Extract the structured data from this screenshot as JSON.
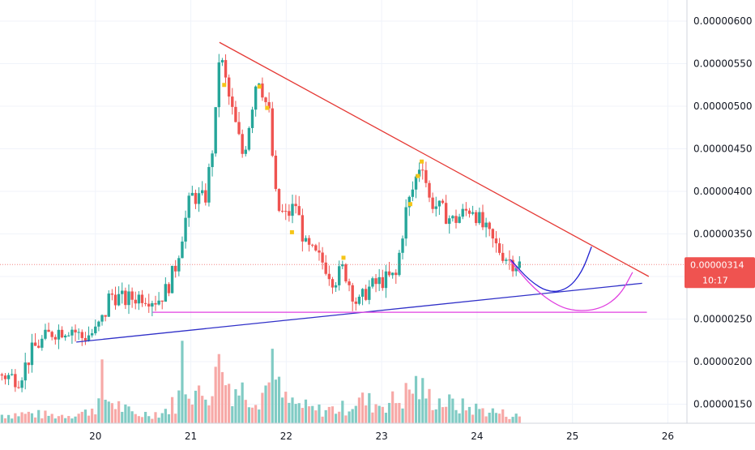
{
  "chart_data": {
    "type": "candlestick",
    "x_ticks": [
      "20",
      "21",
      "22",
      "23",
      "24",
      "25",
      "26"
    ],
    "y_ticks": [
      "0.00000150",
      "0.00000200",
      "0.00000250",
      "0.00000300",
      "0.00000350",
      "0.00000400",
      "0.00000450",
      "0.00000500",
      "0.00000550",
      "0.00000600"
    ],
    "xlim": [
      19.0,
      26.2
    ],
    "ylim": [
      1.18e-06,
      6.3e-06
    ],
    "grid": true,
    "current_price": {
      "label": "0.00000314",
      "countdown": "10:17",
      "value": 3.14e-06,
      "color": "#ef5350"
    },
    "colors": {
      "up": "#26a69a",
      "down": "#ef5350",
      "volume_up": "#80cbc4",
      "volume_down": "#f7a9a7",
      "resistance": "#e53935",
      "support": "#3030c8",
      "horizontal": "#e040e0",
      "projection_blue": "#2020d0",
      "projection_magenta": "#e040e0",
      "marker": "#f5c518",
      "ma": "#ffb74d"
    },
    "price_path": [
      [
        19.0,
        1.85e-06
      ],
      [
        19.2,
        1.8e-06
      ],
      [
        19.35,
        2.15e-06
      ],
      [
        19.55,
        2.35e-06
      ],
      [
        19.75,
        2.4e-06
      ],
      [
        19.85,
        2.28e-06
      ],
      [
        20.0,
        2.35e-06
      ],
      [
        20.1,
        2.55e-06
      ],
      [
        20.15,
        2.8e-06
      ],
      [
        20.3,
        2.72e-06
      ],
      [
        20.5,
        2.78e-06
      ],
      [
        20.65,
        2.72e-06
      ],
      [
        20.75,
        2.85e-06
      ],
      [
        20.85,
        3.15e-06
      ],
      [
        20.9,
        3.45e-06
      ],
      [
        21.0,
        3.95e-06
      ],
      [
        21.15,
        3.9e-06
      ],
      [
        21.25,
        4.7e-06
      ],
      [
        21.3,
        5.65e-06
      ],
      [
        21.4,
        5.1e-06
      ],
      [
        21.55,
        4.4e-06
      ],
      [
        21.7,
        5.4e-06
      ],
      [
        21.82,
        4.9e-06
      ],
      [
        21.9,
        3.8e-06
      ],
      [
        22.0,
        3.7e-06
      ],
      [
        22.1,
        3.85e-06
      ],
      [
        22.2,
        3.35e-06
      ],
      [
        22.4,
        3.15e-06
      ],
      [
        22.5,
        2.95e-06
      ],
      [
        22.6,
        3.1e-06
      ],
      [
        22.75,
        2.65e-06
      ],
      [
        22.85,
        2.85e-06
      ],
      [
        23.0,
        2.95e-06
      ],
      [
        23.15,
        3e-06
      ],
      [
        23.25,
        3.75e-06
      ],
      [
        23.32,
        4e-06
      ],
      [
        23.42,
        4.4e-06
      ],
      [
        23.5,
        3.9e-06
      ],
      [
        23.6,
        3.8e-06
      ],
      [
        23.75,
        3.65e-06
      ],
      [
        23.95,
        3.82e-06
      ],
      [
        24.05,
        3.6e-06
      ],
      [
        24.2,
        3.35e-06
      ],
      [
        24.35,
        3.18e-06
      ],
      [
        24.45,
        3.14e-06
      ]
    ],
    "volume_profile": [
      [
        19.0,
        0.4
      ],
      [
        19.3,
        0.45
      ],
      [
        19.6,
        0.35
      ],
      [
        19.9,
        0.5
      ],
      [
        20.1,
        1.2
      ],
      [
        20.4,
        0.4
      ],
      [
        20.7,
        0.5
      ],
      [
        20.85,
        1.0
      ],
      [
        20.95,
        2.0
      ],
      [
        21.1,
        1.2
      ],
      [
        21.3,
        2.2
      ],
      [
        21.5,
        1.6
      ],
      [
        21.7,
        1.3
      ],
      [
        21.85,
        2.0
      ],
      [
        22.0,
        1.0
      ],
      [
        22.3,
        0.6
      ],
      [
        22.6,
        0.7
      ],
      [
        22.75,
        1.1
      ],
      [
        22.95,
        0.9
      ],
      [
        23.2,
        1.1
      ],
      [
        23.35,
        1.8
      ],
      [
        23.5,
        1.2
      ],
      [
        23.8,
        0.8
      ],
      [
        24.1,
        0.6
      ],
      [
        24.45,
        0.3
      ]
    ],
    "volume_spikes": [
      [
        20.08,
        2.4
      ],
      [
        20.92,
        3.1
      ],
      [
        21.3,
        2.6
      ],
      [
        21.85,
        2.8
      ]
    ],
    "volume_max": 3.2,
    "trendlines": [
      {
        "name": "resistance",
        "points": [
          [
            21.3,
            5.75e-06
          ],
          [
            25.8,
            3e-06
          ]
        ],
        "color": "#e53935"
      },
      {
        "name": "rising-support",
        "points": [
          [
            19.8,
            2.23e-06
          ],
          [
            25.73,
            2.92e-06
          ]
        ],
        "color": "#3030c8"
      },
      {
        "name": "horizontal-support",
        "points": [
          [
            20.6,
            2.58e-06
          ],
          [
            25.78,
            2.58e-06
          ]
        ],
        "color": "#e040e0"
      }
    ],
    "projections": [
      {
        "name": "blue-curve",
        "color": "#2020d0",
        "points": [
          [
            24.35,
            3.2e-06
          ],
          [
            24.55,
            2.95e-06
          ],
          [
            24.75,
            2.81e-06
          ],
          [
            24.95,
            2.85e-06
          ],
          [
            25.1,
            3.05e-06
          ],
          [
            25.2,
            3.35e-06
          ]
        ]
      },
      {
        "name": "magenta-curve",
        "color": "#e040e0",
        "points": [
          [
            24.35,
            3.18e-06
          ],
          [
            24.6,
            2.85e-06
          ],
          [
            24.85,
            2.65e-06
          ],
          [
            25.05,
            2.59e-06
          ],
          [
            25.3,
            2.62e-06
          ],
          [
            25.5,
            2.78e-06
          ],
          [
            25.63,
            3.05e-06
          ]
        ]
      }
    ],
    "markers": [
      [
        21.35,
        5.25e-06
      ],
      [
        21.72,
        5.23e-06
      ],
      [
        21.8,
        4.98e-06
      ],
      [
        22.06,
        3.52e-06
      ],
      [
        22.6,
        3.22e-06
      ],
      [
        23.3,
        3.85e-06
      ],
      [
        23.38,
        4.18e-06
      ],
      [
        23.42,
        4.35e-06
      ]
    ]
  }
}
